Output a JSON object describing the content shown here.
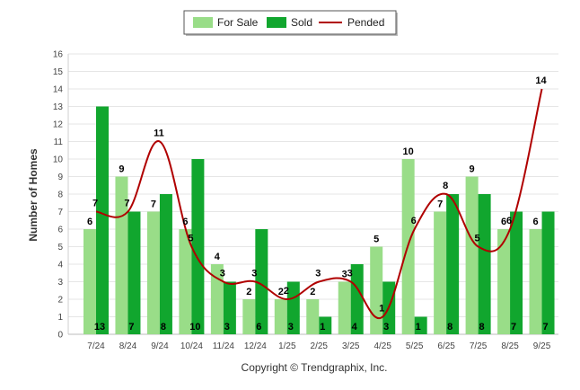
{
  "chart_data": {
    "type": "bar",
    "title": "",
    "xlabel": "",
    "ylabel": "Number of Homes",
    "ylim": [
      0,
      16
    ],
    "yticks": [
      0,
      1,
      2,
      3,
      4,
      5,
      6,
      7,
      8,
      9,
      10,
      11,
      12,
      13,
      14,
      15,
      16
    ],
    "grid": true,
    "legend_position": "top-center",
    "categories": [
      "7/24",
      "8/24",
      "9/24",
      "10/24",
      "11/24",
      "12/24",
      "1/25",
      "2/25",
      "3/25",
      "4/25",
      "5/25",
      "6/25",
      "7/25",
      "8/25",
      "9/25"
    ],
    "series": [
      {
        "name": "For Sale",
        "kind": "bar",
        "color": "#99dd88",
        "values": [
          6,
          9,
          7,
          6,
          4,
          2,
          2,
          2,
          3,
          5,
          10,
          7,
          9,
          6,
          6
        ]
      },
      {
        "name": "Sold",
        "kind": "bar",
        "color": "#11a62e",
        "values": [
          13,
          7,
          8,
          10,
          3,
          6,
          3,
          1,
          4,
          3,
          1,
          8,
          8,
          7,
          7
        ]
      },
      {
        "name": "Pended",
        "kind": "line",
        "color": "#b00000",
        "values": [
          7,
          7,
          11,
          5,
          3,
          3,
          2,
          3,
          3,
          1,
          6,
          8,
          5,
          6,
          14
        ]
      }
    ],
    "footer": "Copyright © Trendgraphix, Inc."
  }
}
